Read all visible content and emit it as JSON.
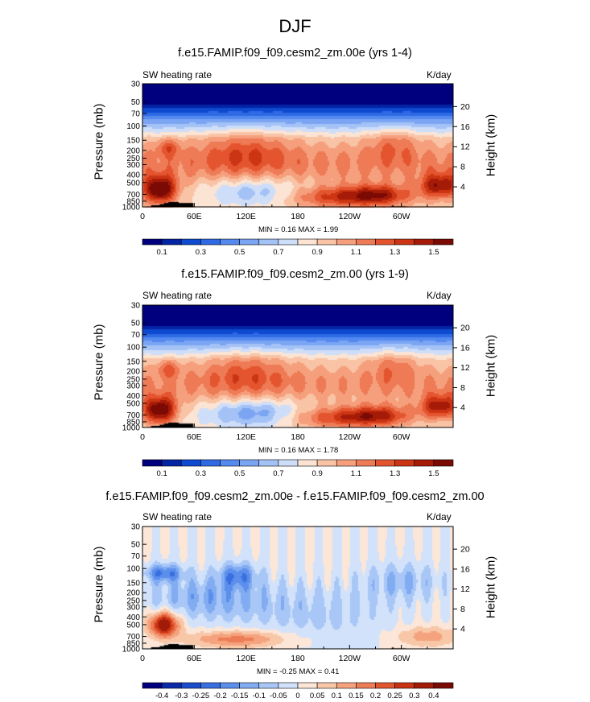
{
  "title": "DJF",
  "colors": {
    "abs_scale": [
      "#00007f",
      "#0324a4",
      "#0e4ad0",
      "#2f6ae4",
      "#5489ef",
      "#7ba5f3",
      "#a4c2f6",
      "#cfdef8",
      "#fbe4d4",
      "#f9c3a6",
      "#f59f7c",
      "#ee7a56",
      "#e4552f",
      "#cc3513",
      "#a51b08",
      "#7b0a05"
    ],
    "diff_scale": [
      "#00007f",
      "#0b2aa8",
      "#1b4ccc",
      "#3a6fe0",
      "#5c8fec",
      "#82acf2",
      "#a9c7f6",
      "#d1e2fa",
      "#fbe6d8",
      "#f8c7a8",
      "#f4a37e",
      "#ec7d56",
      "#e2562f",
      "#c93313",
      "#a21a08",
      "#7b0a05"
    ]
  },
  "chart_data": [
    {
      "type": "heatmap",
      "title": "f.e15.FAMIP.f09_f09.cesm2_zm.00e (yrs 1-4)",
      "left_label": "SW heating rate",
      "right_label": "K/day",
      "xlabel": "",
      "ylabel": "Pressure (mb)",
      "y2label": "Height (km)",
      "xticks": [
        "0",
        "60E",
        "120E",
        "180",
        "120W",
        "60W"
      ],
      "yticks": [
        "1000",
        "850",
        "700",
        "500",
        "400",
        "300",
        "250",
        "200",
        "150",
        "100",
        "70",
        "50",
        "30"
      ],
      "y2ticks": [
        "4",
        "8",
        "12",
        "16",
        "20"
      ],
      "stats": "MIN =   0.16  MAX =   1.99",
      "colorbar_labels": [
        "0.1",
        "0.3",
        "0.5",
        "0.7",
        "0.9",
        "1.1",
        "1.3",
        "1.5"
      ],
      "levels": [
        0.1,
        0.2,
        0.3,
        0.4,
        0.5,
        0.6,
        0.7,
        0.8,
        0.9,
        1.0,
        1.1,
        1.2,
        1.3,
        1.4,
        1.5
      ],
      "min": 0.16,
      "max": 1.99
    },
    {
      "type": "heatmap",
      "title": "f.e15.FAMIP.f09_f09.cesm2_zm.00 (yrs 1-9)",
      "left_label": "SW heating rate",
      "right_label": "K/day",
      "xlabel": "",
      "ylabel": "Pressure (mb)",
      "y2label": "Height (km)",
      "xticks": [
        "0",
        "60E",
        "120E",
        "180",
        "120W",
        "60W"
      ],
      "yticks": [
        "1000",
        "850",
        "700",
        "500",
        "400",
        "300",
        "250",
        "200",
        "150",
        "100",
        "70",
        "50",
        "30"
      ],
      "y2ticks": [
        "4",
        "8",
        "12",
        "16",
        "20"
      ],
      "stats": "MIN =   0.16  MAX =   1.78",
      "colorbar_labels": [
        "0.1",
        "0.3",
        "0.5",
        "0.7",
        "0.9",
        "1.1",
        "1.3",
        "1.5"
      ],
      "levels": [
        0.1,
        0.2,
        0.3,
        0.4,
        0.5,
        0.6,
        0.7,
        0.8,
        0.9,
        1.0,
        1.1,
        1.2,
        1.3,
        1.4,
        1.5
      ],
      "min": 0.16,
      "max": 1.78
    },
    {
      "type": "heatmap",
      "title": "f.e15.FAMIP.f09_f09.cesm2_zm.00e - f.e15.FAMIP.f09_f09.cesm2_zm.00",
      "left_label": "SW heating rate",
      "right_label": "K/day",
      "xlabel": "",
      "ylabel": "Pressure (mb)",
      "y2label": "Height (km)",
      "xticks": [
        "0",
        "60E",
        "120E",
        "180",
        "120W",
        "60W"
      ],
      "yticks": [
        "1000",
        "850",
        "700",
        "500",
        "400",
        "300",
        "250",
        "200",
        "150",
        "100",
        "70",
        "50",
        "30"
      ],
      "y2ticks": [
        "4",
        "8",
        "12",
        "16",
        "20"
      ],
      "stats": "MIN =  -0.25  MAX =   0.41",
      "colorbar_labels": [
        "-0.4",
        "-0.3",
        "-0.25",
        "-0.2",
        "-0.15",
        "-0.1",
        "-0.05",
        "0",
        "0.05",
        "0.1",
        "0.15",
        "0.2",
        "0.25",
        "0.3",
        "0.4"
      ],
      "levels": [
        -0.4,
        -0.3,
        -0.25,
        -0.2,
        -0.15,
        -0.1,
        -0.05,
        0,
        0.05,
        0.1,
        0.15,
        0.2,
        0.25,
        0.3,
        0.4
      ],
      "min": -0.25,
      "max": 0.41
    }
  ]
}
